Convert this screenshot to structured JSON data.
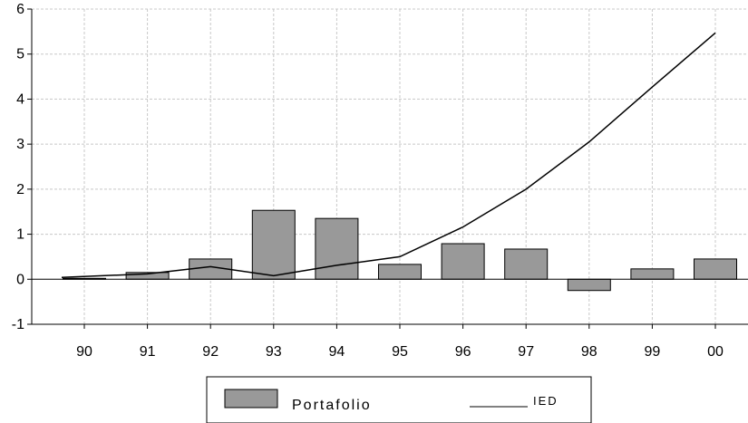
{
  "chart_data": {
    "type": "bar",
    "categories": [
      "90",
      "91",
      "92",
      "93",
      "94",
      "95",
      "96",
      "97",
      "98",
      "99",
      "00"
    ],
    "series": [
      {
        "name": "Portafolio",
        "type": "bar",
        "color": "#999999",
        "values": [
          0.02,
          0.15,
          0.45,
          1.53,
          1.35,
          0.33,
          0.79,
          0.67,
          -0.25,
          0.23,
          0.45
        ]
      },
      {
        "name": "IED",
        "type": "line",
        "color": "#000000",
        "values": [
          0.04,
          0.12,
          0.28,
          0.08,
          0.31,
          0.5,
          1.16,
          2.0,
          3.05,
          4.27,
          5.47
        ]
      }
    ],
    "y_ticks": [
      -1,
      0,
      1,
      2,
      3,
      4,
      5,
      6
    ],
    "ylim": [
      -1,
      6
    ],
    "grid": true,
    "legend_position": "bottom-center",
    "title": "",
    "xlabel": "",
    "ylabel": ""
  }
}
